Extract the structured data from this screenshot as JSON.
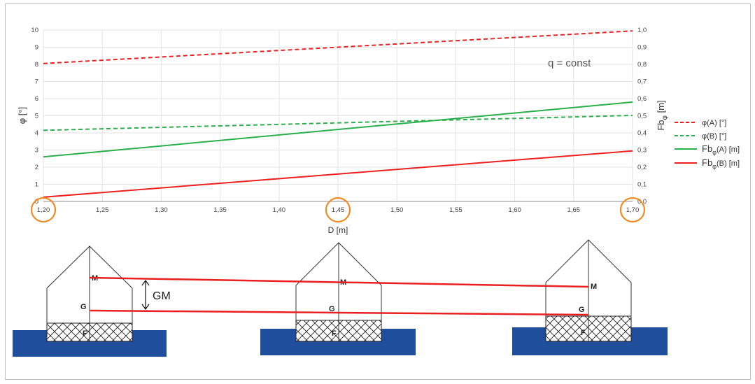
{
  "chart_data": {
    "type": "line",
    "x": [
      1.2,
      1.7
    ],
    "x_tick_labels": [
      "1,20",
      "1,25",
      "1,30",
      "1,35",
      "1,40",
      "1,45",
      "1,50",
      "1,55",
      "1,60",
      "1,65",
      "1,70"
    ],
    "xlim": [
      1.2,
      1.7
    ],
    "xlabel": "D  [m]",
    "ylabel_left": "φ [°]",
    "ylim_left": [
      0,
      10
    ],
    "y_tick_labels_left": [
      "0",
      "1",
      "2",
      "3",
      "4",
      "5",
      "6",
      "7",
      "8",
      "9",
      "10"
    ],
    "ylabel_right": {
      "main": "Fb",
      "sub": "φ",
      "unit": " [m]"
    },
    "ylim_right": [
      0,
      1.0
    ],
    "y_tick_labels_right": [
      "0,0",
      "0,1",
      "0,2",
      "0,3",
      "0,4",
      "0,5",
      "0,6",
      "0,7",
      "0,8",
      "0,9",
      "1,0"
    ],
    "grid": true,
    "legend_position": "right",
    "annotation": "q = const",
    "series": [
      {
        "key": "phiA",
        "name": "φ(A) [°]",
        "axis": "left",
        "values": [
          8.05,
          9.95
        ],
        "color": "#ee2020",
        "dash": true
      },
      {
        "key": "phiB",
        "name": "φ(B) [°]",
        "axis": "left",
        "values": [
          4.15,
          5.02
        ],
        "color": "#2ab04a",
        "dash": true
      },
      {
        "key": "fbA",
        "name_main": "Fb",
        "name_sub": "φ",
        "name_rest": "(A) [m]",
        "axis": "right",
        "values": [
          0.26,
          0.58
        ],
        "color": "#2ab04a",
        "dash": false
      },
      {
        "key": "fbB",
        "name_main": "Fb",
        "name_sub": "φ",
        "name_rest": "(B) [m]",
        "axis": "right",
        "values": [
          0.025,
          0.295
        ],
        "color": "#ee2020",
        "dash": false
      }
    ],
    "highlighted_ticks": [
      "1,20",
      "1,45",
      "1,70"
    ],
    "highlight_color": "#f08a24"
  },
  "diagram": {
    "labels": {
      "M": "M",
      "G": "G",
      "F": "F",
      "GM": "GM"
    },
    "water_color": "#1f4e9c",
    "line_color": "#e82020"
  }
}
